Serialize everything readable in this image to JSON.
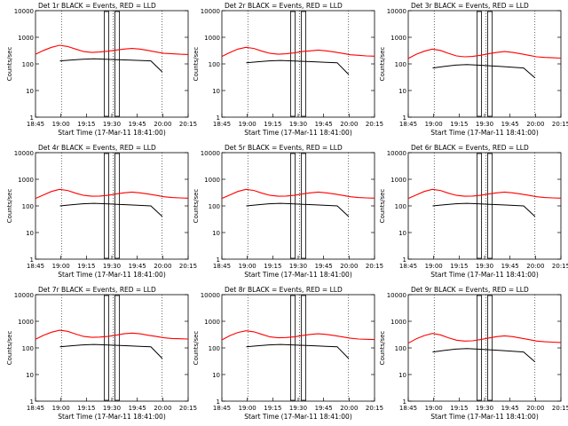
{
  "colors": {
    "events": "#000000",
    "lld": "#ff0000",
    "axis": "#000000",
    "background": "#ffffff"
  },
  "common": {
    "ylabel": "Counts/sec",
    "xlabel": "Start Time (17-Mar-11 18:41:00)",
    "yticks": [
      "1",
      "10",
      "100",
      "1000",
      "10000"
    ],
    "xticks": [
      "18:45",
      "19:00",
      "19:15",
      "19:30",
      "19:45",
      "20:00",
      "20:15"
    ]
  },
  "chart_data": [
    {
      "type": "line",
      "title": "Det 1r BLACK = Events, RED = LLD",
      "ylim": [
        1,
        10000
      ],
      "yscale": "log",
      "xlim": [
        0,
        100
      ],
      "series": [
        {
          "name": "Events",
          "values": [
            130,
            140,
            150,
            155,
            150,
            145,
            140,
            135,
            130,
            50
          ]
        },
        {
          "name": "LLD",
          "values": [
            230,
            320,
            420,
            500,
            450,
            360,
            290,
            270,
            280,
            300,
            330,
            360,
            380,
            360,
            320,
            280,
            250,
            240,
            230,
            225
          ]
        }
      ]
    },
    {
      "type": "line",
      "title": "Det 2r BLACK = Events, RED = LLD",
      "ylim": [
        1,
        10000
      ],
      "yscale": "log",
      "xlim": [
        0,
        100
      ],
      "series": [
        {
          "name": "Events",
          "values": [
            110,
            120,
            130,
            135,
            130,
            125,
            120,
            115,
            110,
            40
          ]
        },
        {
          "name": "LLD",
          "values": [
            190,
            270,
            360,
            420,
            380,
            300,
            250,
            230,
            240,
            260,
            290,
            310,
            330,
            310,
            280,
            250,
            220,
            210,
            200,
            195
          ]
        }
      ]
    },
    {
      "type": "line",
      "title": "Det 3r BLACK = Events, RED = LLD",
      "ylim": [
        1,
        10000
      ],
      "yscale": "log",
      "xlim": [
        0,
        100
      ],
      "series": [
        {
          "name": "Events",
          "values": [
            70,
            80,
            90,
            95,
            90,
            85,
            80,
            75,
            70,
            30
          ]
        },
        {
          "name": "LLD",
          "values": [
            160,
            230,
            300,
            360,
            320,
            250,
            200,
            185,
            190,
            210,
            240,
            270,
            290,
            270,
            240,
            210,
            185,
            175,
            170,
            165
          ]
        }
      ]
    },
    {
      "type": "line",
      "title": "Det 4r BLACK = Events, RED = LLD",
      "ylim": [
        1,
        10000
      ],
      "yscale": "log",
      "xlim": [
        0,
        100
      ],
      "series": [
        {
          "name": "Events",
          "values": [
            100,
            110,
            120,
            125,
            120,
            115,
            110,
            105,
            100,
            40
          ]
        },
        {
          "name": "LLD",
          "values": [
            190,
            260,
            350,
            420,
            380,
            300,
            250,
            230,
            235,
            250,
            280,
            310,
            330,
            310,
            280,
            250,
            220,
            205,
            200,
            195
          ]
        }
      ]
    },
    {
      "type": "line",
      "title": "Det 5r BLACK = Events, RED = LLD",
      "ylim": [
        1,
        10000
      ],
      "yscale": "log",
      "xlim": [
        0,
        100
      ],
      "series": [
        {
          "name": "Events",
          "values": [
            100,
            110,
            120,
            125,
            120,
            115,
            110,
            105,
            100,
            40
          ]
        },
        {
          "name": "LLD",
          "values": [
            190,
            260,
            350,
            420,
            380,
            300,
            250,
            230,
            235,
            250,
            280,
            310,
            330,
            310,
            280,
            250,
            220,
            205,
            200,
            195
          ]
        }
      ]
    },
    {
      "type": "line",
      "title": "Det 6r BLACK = Events, RED = LLD",
      "ylim": [
        1,
        10000
      ],
      "yscale": "log",
      "xlim": [
        0,
        100
      ],
      "series": [
        {
          "name": "Events",
          "values": [
            100,
            110,
            120,
            125,
            120,
            115,
            110,
            105,
            100,
            40
          ]
        },
        {
          "name": "LLD",
          "values": [
            190,
            260,
            350,
            420,
            380,
            300,
            250,
            230,
            235,
            250,
            280,
            310,
            330,
            310,
            280,
            250,
            220,
            205,
            200,
            195
          ]
        }
      ]
    },
    {
      "type": "line",
      "title": "Det 7r BLACK = Events, RED = LLD",
      "ylim": [
        1,
        10000
      ],
      "yscale": "log",
      "xlim": [
        0,
        100
      ],
      "series": [
        {
          "name": "Events",
          "values": [
            110,
            120,
            130,
            135,
            130,
            125,
            120,
            115,
            110,
            40
          ]
        },
        {
          "name": "LLD",
          "values": [
            210,
            300,
            390,
            460,
            420,
            330,
            270,
            250,
            255,
            270,
            300,
            340,
            360,
            340,
            300,
            270,
            240,
            225,
            220,
            215
          ]
        }
      ]
    },
    {
      "type": "line",
      "title": "Det 8r BLACK = Events, RED = LLD",
      "ylim": [
        1,
        10000
      ],
      "yscale": "log",
      "xlim": [
        0,
        100
      ],
      "series": [
        {
          "name": "Events",
          "values": [
            110,
            120,
            130,
            135,
            130,
            125,
            120,
            115,
            110,
            40
          ]
        },
        {
          "name": "LLD",
          "values": [
            200,
            290,
            380,
            440,
            400,
            320,
            260,
            240,
            245,
            260,
            290,
            320,
            340,
            320,
            290,
            260,
            230,
            215,
            210,
            205
          ]
        }
      ]
    },
    {
      "type": "line",
      "title": "Det 9r BLACK = Events, RED = LLD",
      "ylim": [
        1,
        10000
      ],
      "yscale": "log",
      "xlim": [
        0,
        100
      ],
      "series": [
        {
          "name": "Events",
          "values": [
            70,
            80,
            90,
            95,
            90,
            85,
            80,
            75,
            70,
            30
          ]
        },
        {
          "name": "LLD",
          "values": [
            150,
            220,
            290,
            350,
            310,
            240,
            195,
            180,
            185,
            205,
            235,
            265,
            285,
            265,
            235,
            205,
            180,
            170,
            165,
            160
          ]
        }
      ]
    }
  ]
}
